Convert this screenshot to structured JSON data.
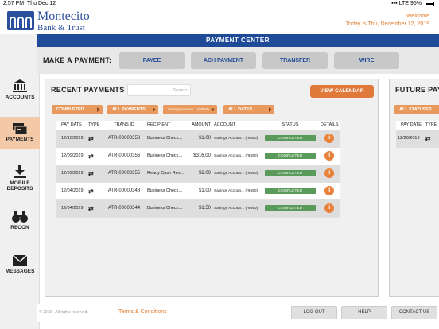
{
  "status_bar": {
    "time": "2:57 PM",
    "date": "Thu Dec 12",
    "network": "LTE",
    "battery": "95%"
  },
  "header": {
    "brand_line1": "Montecito",
    "brand_line2": "Bank & Trust",
    "welcome": "Welcome",
    "today": "Today Is Thu, December 12, 2019"
  },
  "sidebar": {
    "items": [
      {
        "label": "ACCOUNTS",
        "icon": "bank-icon"
      },
      {
        "label": "PAYMENTS",
        "icon": "payments-icon",
        "active": true
      },
      {
        "label": "MOBILE DEPOSITS",
        "label1": "MOBILE",
        "label2": "DEPOSITS",
        "icon": "download-icon"
      },
      {
        "label": "RECON",
        "icon": "binoculars-icon"
      },
      {
        "label": "MESSAGES",
        "icon": "envelope-icon"
      }
    ]
  },
  "payment_center": {
    "title": "PAYMENT CENTER",
    "make_label": "MAKE A PAYMENT:",
    "buttons": [
      "PAYEE",
      "ACH PAYMENT",
      "TRANSFER",
      "WIRE"
    ]
  },
  "recent": {
    "title": "RECENT PAYMENTS",
    "search_placeholder": "Search",
    "view_calendar": "VIEW CALENDAR",
    "filters": [
      "COMPLETED",
      "ALL PAYMENTS",
      "Savings Accoun... (*9550)",
      "ALL DATES"
    ],
    "columns": [
      "PAY DATE",
      "TYPE",
      "TRANS ID",
      "RECIPIENT",
      "AMOUNT",
      "ACCOUNT",
      "STATUS",
      "DETAILS"
    ],
    "rows": [
      {
        "date": "12/10/2019",
        "type": "⇄",
        "trans_id": "ATR-00000358",
        "recipient": "Business Check...",
        "amount": "$1.00",
        "account": "Savings Accoun... (*9550)",
        "status": "COMPLETED",
        "details": "i"
      },
      {
        "date": "12/09/2019",
        "type": "⇄",
        "trans_id": "ATR-00000356",
        "recipient": "Business Check...",
        "amount": "$316.00",
        "account": "Savings Accoun... (*9550)",
        "status": "COMPLETED",
        "details": "i"
      },
      {
        "date": "12/09/2019",
        "type": "⇄",
        "trans_id": "ATR-00000355",
        "recipient": "Ready Cash Res...",
        "amount": "$2.00",
        "account": "Savings Accoun... (*9550)",
        "status": "COMPLETED",
        "details": "i"
      },
      {
        "date": "12/04/2019",
        "type": "⇄",
        "trans_id": "ATR-00000348",
        "recipient": "Business Check...",
        "amount": "$1.00",
        "account": "Savings Accoun... (*9550)",
        "status": "COMPLETED",
        "details": "i"
      },
      {
        "date": "12/04/2019",
        "type": "⇄",
        "trans_id": "ATR-00000344",
        "recipient": "Business Check...",
        "amount": "$1.50",
        "account": "Savings Accoun... (*9550)",
        "status": "COMPLETED",
        "details": "i"
      }
    ]
  },
  "future": {
    "title": "FUTURE PAY",
    "filter": "ALL STATUSES",
    "columns": [
      "PAY DATE",
      "TYPE"
    ],
    "rows": [
      {
        "date": "12/20/2019",
        "type": "⇄"
      }
    ]
  },
  "footer": {
    "copyright": "© 2019 · All rights reserved.",
    "terms": "Terms & Conditions",
    "buttons": [
      "LOG OUT",
      "HELP",
      "CONTACT US"
    ]
  },
  "colors": {
    "brand_blue": "#1e4a97",
    "accent_orange": "#e07a3a",
    "status_green": "#5a9a5a"
  }
}
